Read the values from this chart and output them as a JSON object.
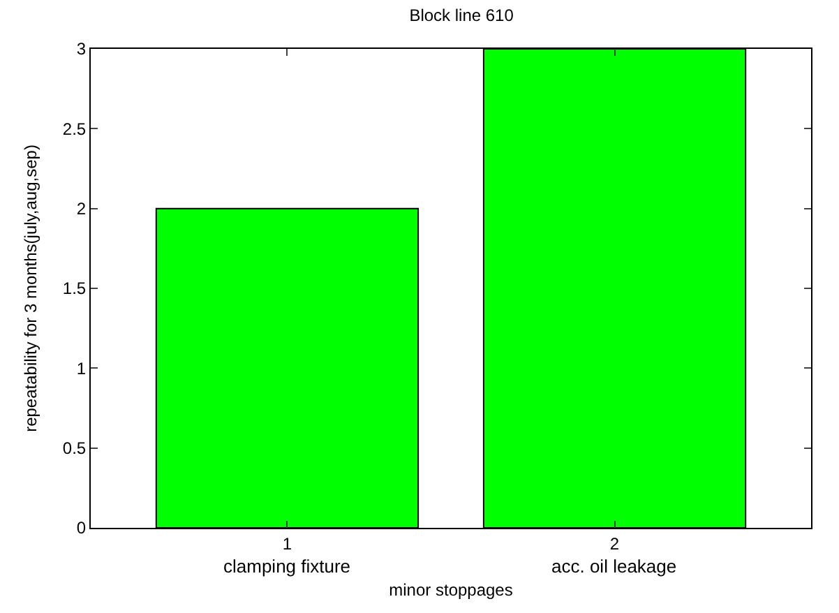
{
  "chart_data": {
    "type": "bar",
    "title": "Block line 610",
    "xlabel": "minor stoppages",
    "ylabel": "repeatability for 3 months(july,aug,sep)",
    "x": [
      1,
      2
    ],
    "values": [
      2,
      3
    ],
    "color": "#00ff00",
    "xlim": [
      0.4,
      2.6
    ],
    "xticks": [
      1,
      2
    ],
    "ylim": [
      0,
      3
    ],
    "yticks": [
      0,
      0.5,
      1,
      1.5,
      2,
      2.5,
      3
    ],
    "legend": false,
    "annotations": [
      {
        "text": "clamping fixture",
        "x": 1,
        "y": 0
      },
      {
        "text": "acc. oil leakage",
        "x": 2,
        "y": 0
      }
    ]
  }
}
